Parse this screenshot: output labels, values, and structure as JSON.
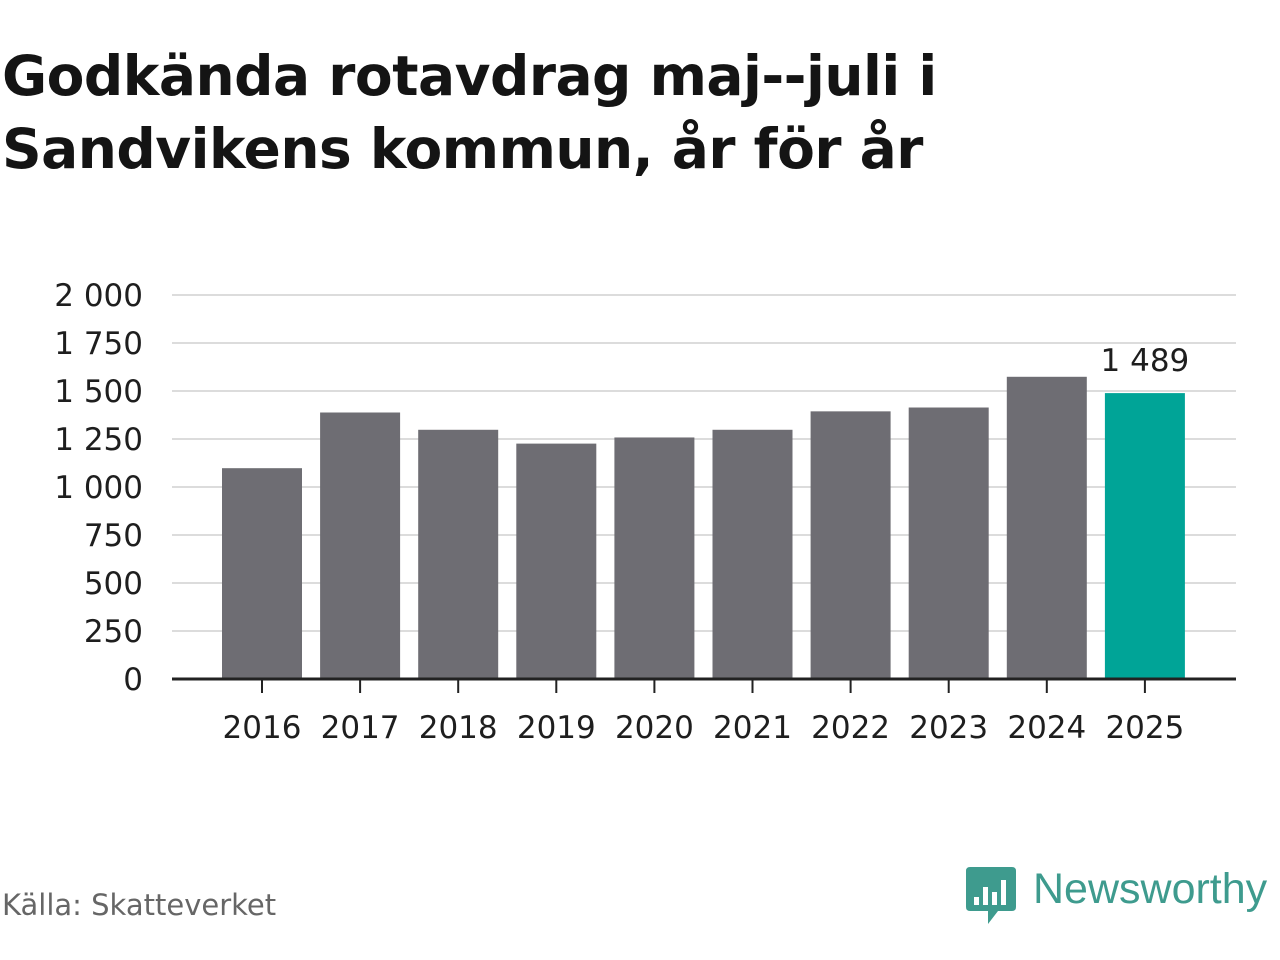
{
  "chart_data": {
    "type": "bar",
    "title": "Godkända rotavdrag maj--juli i Sandvikens kommun, år för år",
    "categories": [
      "2016",
      "2017",
      "2018",
      "2019",
      "2020",
      "2021",
      "2022",
      "2023",
      "2024",
      "2025"
    ],
    "values": [
      1098,
      1388,
      1298,
      1226,
      1258,
      1298,
      1394,
      1414,
      1574,
      1489
    ],
    "ylim": [
      0,
      2000
    ],
    "yticks": [
      0,
      250,
      500,
      750,
      1000,
      1250,
      1500,
      1750,
      2000
    ],
    "ytick_labels": [
      "0",
      "250",
      "500",
      "750",
      "1 000",
      "1 250",
      "1 500",
      "1 750",
      "2 000"
    ],
    "data_labels": [
      {
        "category": "2025",
        "text": "1 489"
      }
    ],
    "highlight_category": "2025",
    "grid": true,
    "xlabel": "",
    "ylabel": ""
  },
  "source": "Källa: Skatteverket",
  "brand": "Newsworthy",
  "colors": {
    "bar": "#6e6d73",
    "highlight": "#00a497",
    "grid": "#dcdcdc",
    "axis": "#222222",
    "tick_text": "#1e1e1e",
    "brand": "#3e9b8e"
  }
}
